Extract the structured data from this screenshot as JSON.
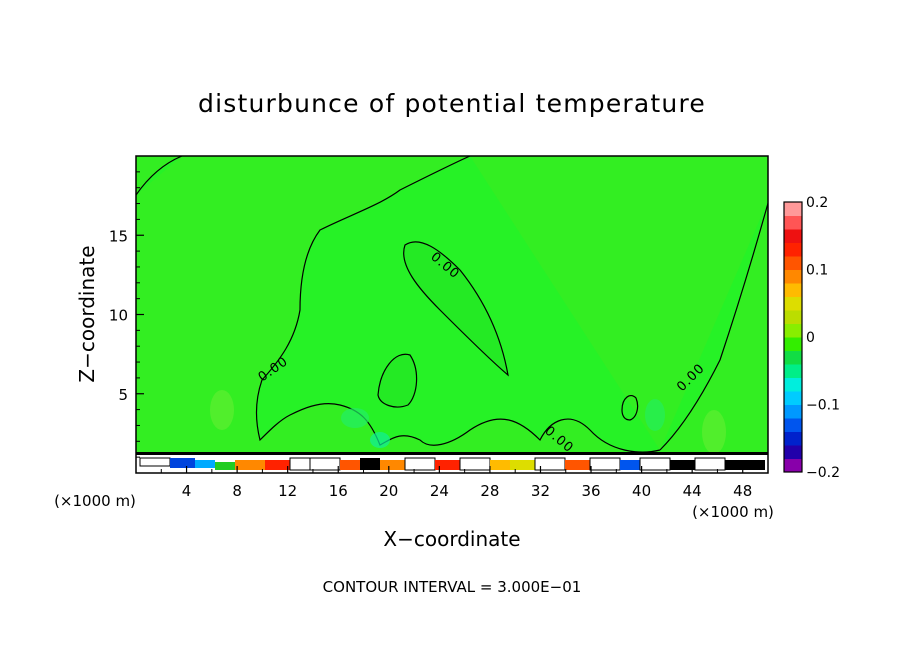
{
  "chart_data": {
    "type": "heatmap",
    "title": "disturbunce of potential temperature",
    "xlabel": "X−coordinate",
    "ylabel": "Z−coordinate",
    "x_unit_left": "(×1000 m)",
    "x_unit_right": "(×1000 m)",
    "x_ticks": [
      "4",
      "8",
      "12",
      "16",
      "20",
      "24",
      "28",
      "32",
      "36",
      "40",
      "44",
      "48"
    ],
    "y_ticks": [
      "5",
      "10",
      "15"
    ],
    "xlim": [
      0,
      50
    ],
    "ylim": [
      0,
      20
    ],
    "contour_interval_text": "CONTOUR INTERVAL = 3.000E−01",
    "contour_labels": [
      "0.00",
      "0.00",
      "0.00",
      "0.00"
    ],
    "colorbar": {
      "ticks": [
        "0.2",
        "0.1",
        "0",
        "−0.1",
        "−0.2"
      ],
      "range": [
        -0.2,
        0.2
      ],
      "colors": [
        "#8800aa",
        "#2200aa",
        "#0022cc",
        "#0055ee",
        "#0099ff",
        "#00ccff",
        "#00eedd",
        "#00ee88",
        "#11dd44",
        "#33ee00",
        "#88ee00",
        "#bbdd00",
        "#dddd00",
        "#ffbb00",
        "#ff8800",
        "#ff5500",
        "#ff2200",
        "#ee1111",
        "#ff5555",
        "#ff9999"
      ]
    },
    "background_value": 0
  }
}
